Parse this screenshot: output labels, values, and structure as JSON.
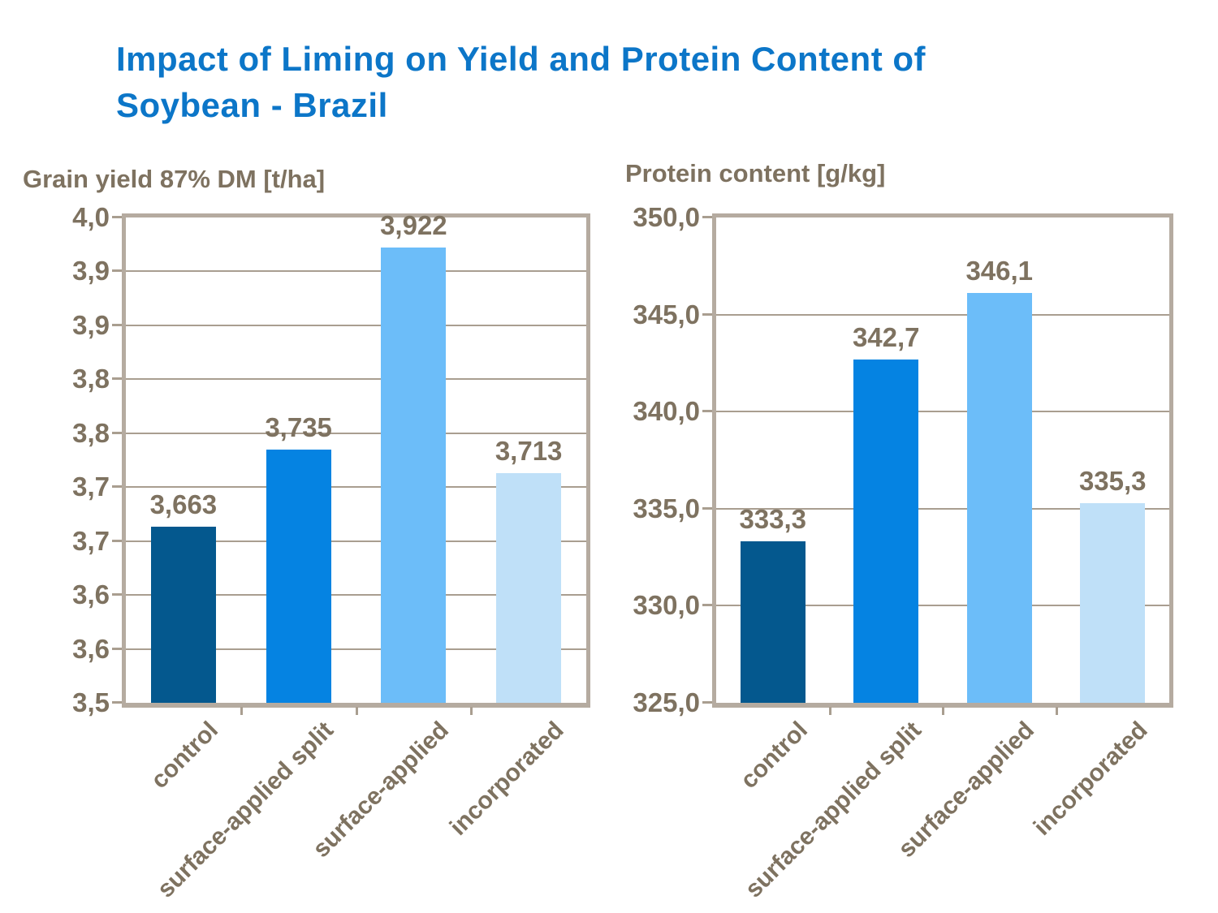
{
  "title": {
    "lines": [
      "Impact of Liming on Yield and Protein Content of",
      "Soybean - Brazil"
    ],
    "color": "#0C76C8"
  },
  "styles": {
    "background": "#FFFFFF",
    "text_color": "#7E7260",
    "grid_color": "#A99E90",
    "border_color": "#B5ABA0",
    "bar_colors": [
      "#04588E",
      "#0583E2",
      "#6CBDF9",
      "#BFE0F8"
    ]
  },
  "chart_data": [
    {
      "type": "bar",
      "title": "Grain yield 87% DM [t/ha]",
      "categories": [
        "control",
        "surface-applied split",
        "surface-applied",
        "incorporated"
      ],
      "values": [
        3.663,
        3.735,
        3.922,
        3.713
      ],
      "data_labels": [
        "3,663",
        "3,735",
        "3,922",
        "3,713"
      ],
      "ylim": [
        3.5,
        3.95
      ],
      "ytick_values": [
        3.5,
        3.55,
        3.6,
        3.65,
        3.7,
        3.75,
        3.8,
        3.85,
        3.9,
        3.95
      ],
      "ytick_labels": [
        "3,5",
        "3,6",
        "3,6",
        "3,7",
        "3,7",
        "3,8",
        "3,8",
        "3,9",
        "3,9",
        "4,0"
      ],
      "xlabel": "",
      "ylabel": "Grain yield 87% DM [t/ha]",
      "grid": true,
      "legend": "none",
      "decimal_separator": ","
    },
    {
      "type": "bar",
      "title": "Protein content [g/kg]",
      "categories": [
        "control",
        "surface-applied split",
        "surface-applied",
        "incorporated"
      ],
      "values": [
        333.3,
        342.7,
        346.1,
        335.3
      ],
      "data_labels": [
        "333,3",
        "342,7",
        "346,1",
        "335,3"
      ],
      "ylim": [
        325.0,
        350.0
      ],
      "ytick_values": [
        325.0,
        330.0,
        335.0,
        340.0,
        345.0,
        350.0
      ],
      "ytick_labels": [
        "325,0",
        "330,0",
        "335,0",
        "340,0",
        "345,0",
        "350,0"
      ],
      "xlabel": "",
      "ylabel": "Protein content [g/kg]",
      "grid": true,
      "legend": "none",
      "decimal_separator": ","
    }
  ]
}
